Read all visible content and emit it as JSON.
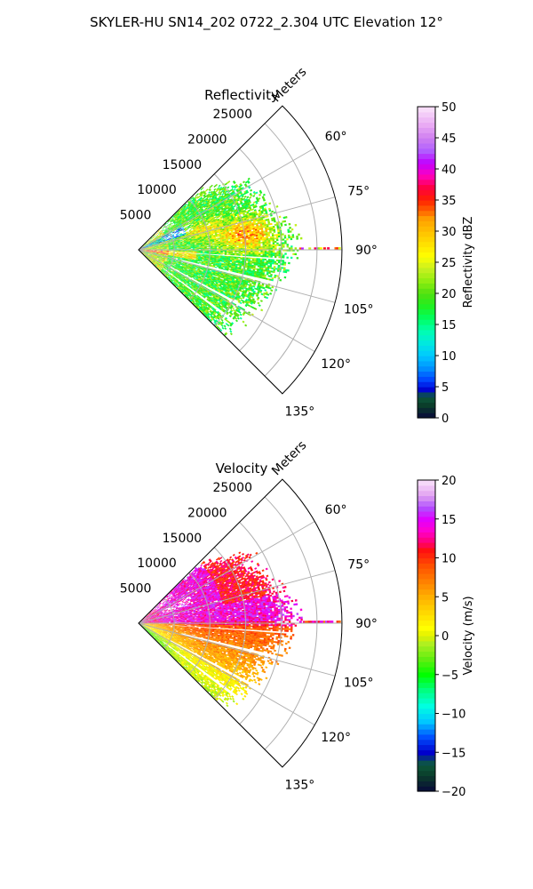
{
  "figure": {
    "suptitle": "SKYLER-HU  SN14_202  0722_2.304 UTC Elevation 12°"
  },
  "chart_data": [
    {
      "type": "heatmap",
      "subtype": "polar-sector radar PPI",
      "title": "Reflectivity",
      "range_axis_label": "Meters",
      "range_ticks": [
        "5000",
        "10000",
        "15000",
        "20000",
        "25000"
      ],
      "range_tick_values": [
        5000,
        10000,
        15000,
        20000,
        25000
      ],
      "range_max": 28500,
      "azimuth_ticks": [
        "60°",
        "75°",
        "90°",
        "105°",
        "120°",
        "135°"
      ],
      "azimuth_tick_values": [
        60,
        75,
        90,
        105,
        120,
        135
      ],
      "azimuth_range": [
        45,
        135
      ],
      "grid": true,
      "colorbar": {
        "label": "Reflectivity dBZ",
        "range": [
          0,
          50
        ],
        "ticks": [
          "0",
          "5",
          "10",
          "15",
          "20",
          "25",
          "30",
          "35",
          "40",
          "45",
          "50"
        ],
        "colormap": "pyart_NWSRef"
      },
      "field_summary": {
        "dominant_values": [
          18,
          25
        ],
        "maximum_core": {
          "value": 33,
          "azimuth": 82,
          "range_m": 15000
        },
        "near_radar_core": {
          "value": 35,
          "azimuth": 97,
          "range_m": 3000
        },
        "coverage_edge_m": {
          "north": 17000,
          "east": 22000,
          "south": 16000
        }
      }
    },
    {
      "type": "heatmap",
      "subtype": "polar-sector radar PPI",
      "title": "Velocity",
      "range_axis_label": "Meters",
      "range_ticks": [
        "5000",
        "10000",
        "15000",
        "20000",
        "25000"
      ],
      "range_tick_values": [
        5000,
        10000,
        15000,
        20000,
        25000
      ],
      "range_max": 28500,
      "azimuth_ticks": [
        "60°",
        "75°",
        "90°",
        "105°",
        "120°",
        "135°"
      ],
      "azimuth_tick_values": [
        60,
        75,
        90,
        105,
        120,
        135
      ],
      "azimuth_range": [
        45,
        135
      ],
      "grid": true,
      "colorbar": {
        "label": "Velocity (m/s)",
        "range": [
          -20,
          20
        ],
        "ticks": [
          "−20",
          "−15",
          "−10",
          "−5",
          "0",
          "5",
          "10",
          "15",
          "20"
        ],
        "colormap": "pyart_BuDRd18"
      },
      "field_summary": {
        "north_of_90": {
          "value_range": [
            10,
            17
          ],
          "note": "pink-purple inbound band"
        },
        "south_of_90": {
          "value_range": [
            0,
            10
          ],
          "note": "orange-yellow band"
        },
        "near_radar_south": {
          "value_range": [
            -5,
            2
          ]
        }
      }
    }
  ],
  "palettes": {
    "reflectivity": [
      [
        0,
        "#08083a"
      ],
      [
        2,
        "#0b3c2a"
      ],
      [
        3.5,
        "#0c5a3c"
      ],
      [
        4.5,
        "#0000cc"
      ],
      [
        6,
        "#0040ff"
      ],
      [
        8,
        "#0090ff"
      ],
      [
        10,
        "#00c8ff"
      ],
      [
        12,
        "#00e8e0"
      ],
      [
        14,
        "#00ffb0"
      ],
      [
        16,
        "#00ff60"
      ],
      [
        18,
        "#20f020"
      ],
      [
        20,
        "#50e010"
      ],
      [
        22,
        "#90ee10"
      ],
      [
        24,
        "#c8f020"
      ],
      [
        26,
        "#ffff00"
      ],
      [
        28,
        "#ffe000"
      ],
      [
        30,
        "#ffc000"
      ],
      [
        32,
        "#ffa000"
      ],
      [
        33,
        "#ff7000"
      ],
      [
        35,
        "#ff2000"
      ],
      [
        37,
        "#ff0040"
      ],
      [
        39,
        "#ff00c0"
      ],
      [
        41,
        "#c000ff"
      ],
      [
        43,
        "#b060ff"
      ],
      [
        45,
        "#d080f0"
      ],
      [
        47,
        "#e8a8f4"
      ],
      [
        50,
        "#fbe4fb"
      ]
    ],
    "velocity": [
      [
        -20,
        "#08083a"
      ],
      [
        -18,
        "#0b3c2a"
      ],
      [
        -16.5,
        "#0c5a3c"
      ],
      [
        -15,
        "#0000cc"
      ],
      [
        -13,
        "#0050ff"
      ],
      [
        -11,
        "#00c8ff"
      ],
      [
        -9,
        "#00ffe0"
      ],
      [
        -7,
        "#00ff80"
      ],
      [
        -5,
        "#00ff00"
      ],
      [
        -3,
        "#60ee10"
      ],
      [
        -1,
        "#b0f020"
      ],
      [
        0,
        "#e0f000"
      ],
      [
        1,
        "#ffff00"
      ],
      [
        3,
        "#ffd800"
      ],
      [
        5,
        "#ffb000"
      ],
      [
        7,
        "#ff8000"
      ],
      [
        9,
        "#ff5000"
      ],
      [
        11,
        "#ff1010"
      ],
      [
        12,
        "#ff0070"
      ],
      [
        13.5,
        "#ff00d0"
      ],
      [
        15,
        "#e000ff"
      ],
      [
        16.5,
        "#b050ff"
      ],
      [
        18,
        "#e0a0f0"
      ],
      [
        20,
        "#fbe4fb"
      ]
    ]
  }
}
